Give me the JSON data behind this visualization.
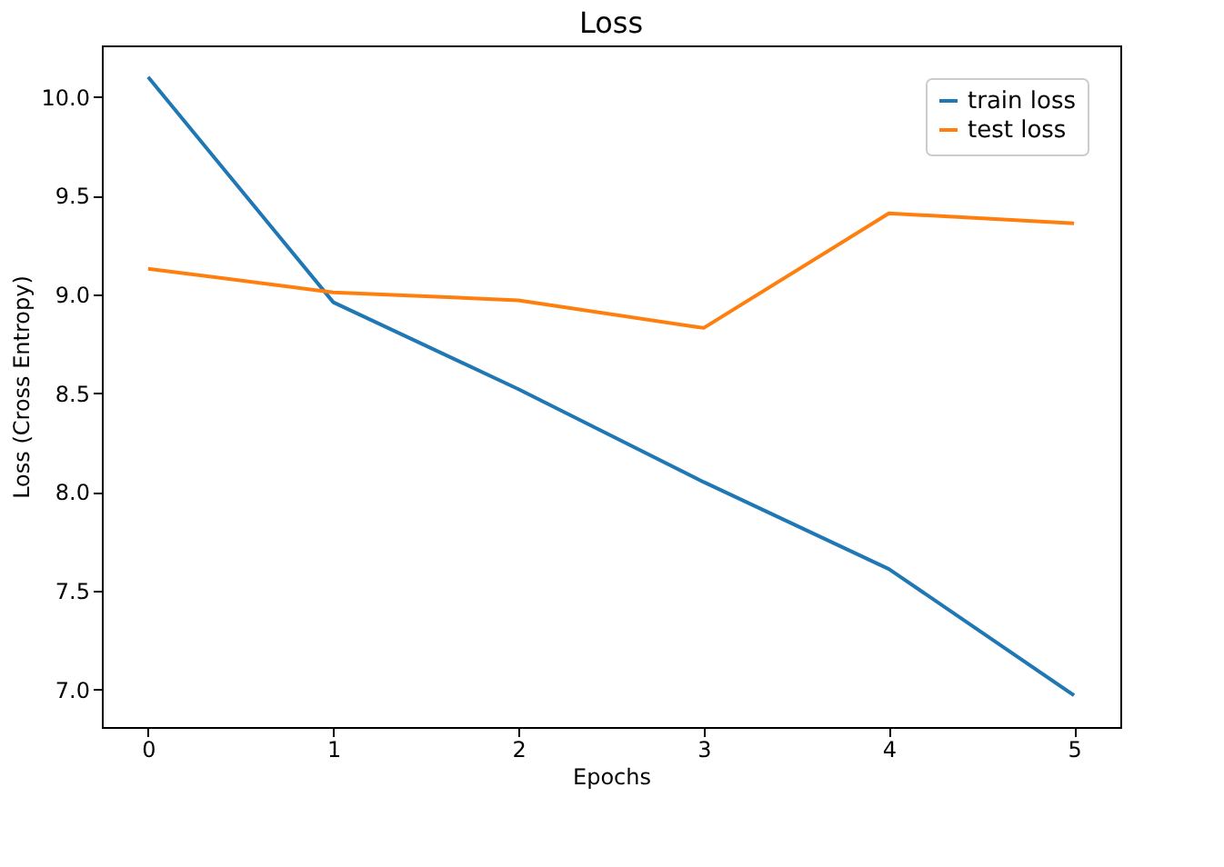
{
  "chart_data": {
    "type": "line",
    "title": "Loss",
    "xlabel": "Epochs",
    "ylabel": "Loss (Cross Entropy)",
    "x": [
      0,
      1,
      2,
      3,
      4,
      5
    ],
    "series": [
      {
        "name": "train loss",
        "color": "#1f77b4",
        "values": [
          10.1,
          8.96,
          8.52,
          8.05,
          7.61,
          6.97
        ]
      },
      {
        "name": "test loss",
        "color": "#ff7f0e",
        "values": [
          9.13,
          9.01,
          8.97,
          8.83,
          9.41,
          9.36
        ]
      }
    ],
    "xlim": [
      -0.25,
      5.25
    ],
    "ylim": [
      6.81,
      10.26
    ],
    "xticks": [
      0,
      1,
      2,
      3,
      4,
      5
    ],
    "yticks": [
      {
        "value": 7,
        "label": "7.0"
      },
      {
        "value": 7.5,
        "label": "7.5"
      },
      {
        "value": 8,
        "label": "8.0"
      },
      {
        "value": 8.5,
        "label": "8.5"
      },
      {
        "value": 9,
        "label": "9.0"
      },
      {
        "value": 9.5,
        "label": "9.5"
      },
      {
        "value": 10,
        "label": "10.0"
      }
    ],
    "grid": false,
    "legend": "top right",
    "marker": "none",
    "line_style": "solid"
  }
}
